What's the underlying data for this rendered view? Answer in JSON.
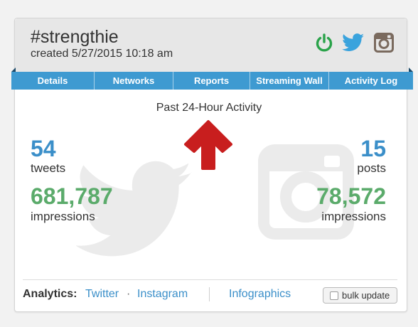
{
  "header": {
    "title": "#strengthie",
    "created": "created 5/27/2015 10:18 am",
    "icons": [
      "power-icon",
      "twitter-icon",
      "instagram-icon"
    ],
    "colors": {
      "power": "#2aa34a",
      "twitter": "#3aa3dd",
      "instagram": "#7a6a5e"
    }
  },
  "tabs": [
    {
      "label": "Details"
    },
    {
      "label": "Networks"
    },
    {
      "label": "Reports"
    },
    {
      "label": "Streaming Wall"
    },
    {
      "label": "Activity Log"
    }
  ],
  "activity": {
    "title": "Past 24-Hour Activity",
    "twitter": {
      "count": "54",
      "count_label": "tweets",
      "impressions": "681,787",
      "impressions_label": "impressions"
    },
    "instagram": {
      "count": "15",
      "count_label": "posts",
      "impressions": "78,572",
      "impressions_label": "impressions"
    }
  },
  "footer": {
    "analytics_label": "Analytics:",
    "twitter_link": "Twitter",
    "separator": "·",
    "instagram_link": "Instagram",
    "infographics_link": "Infographics",
    "bulk_update_label": "bulk update"
  },
  "colors": {
    "tab_bar": "#3e9ad1",
    "count_blue": "#3b8fc9",
    "impressions_green": "#5bab6b",
    "arrow_red": "#c81e1e"
  }
}
